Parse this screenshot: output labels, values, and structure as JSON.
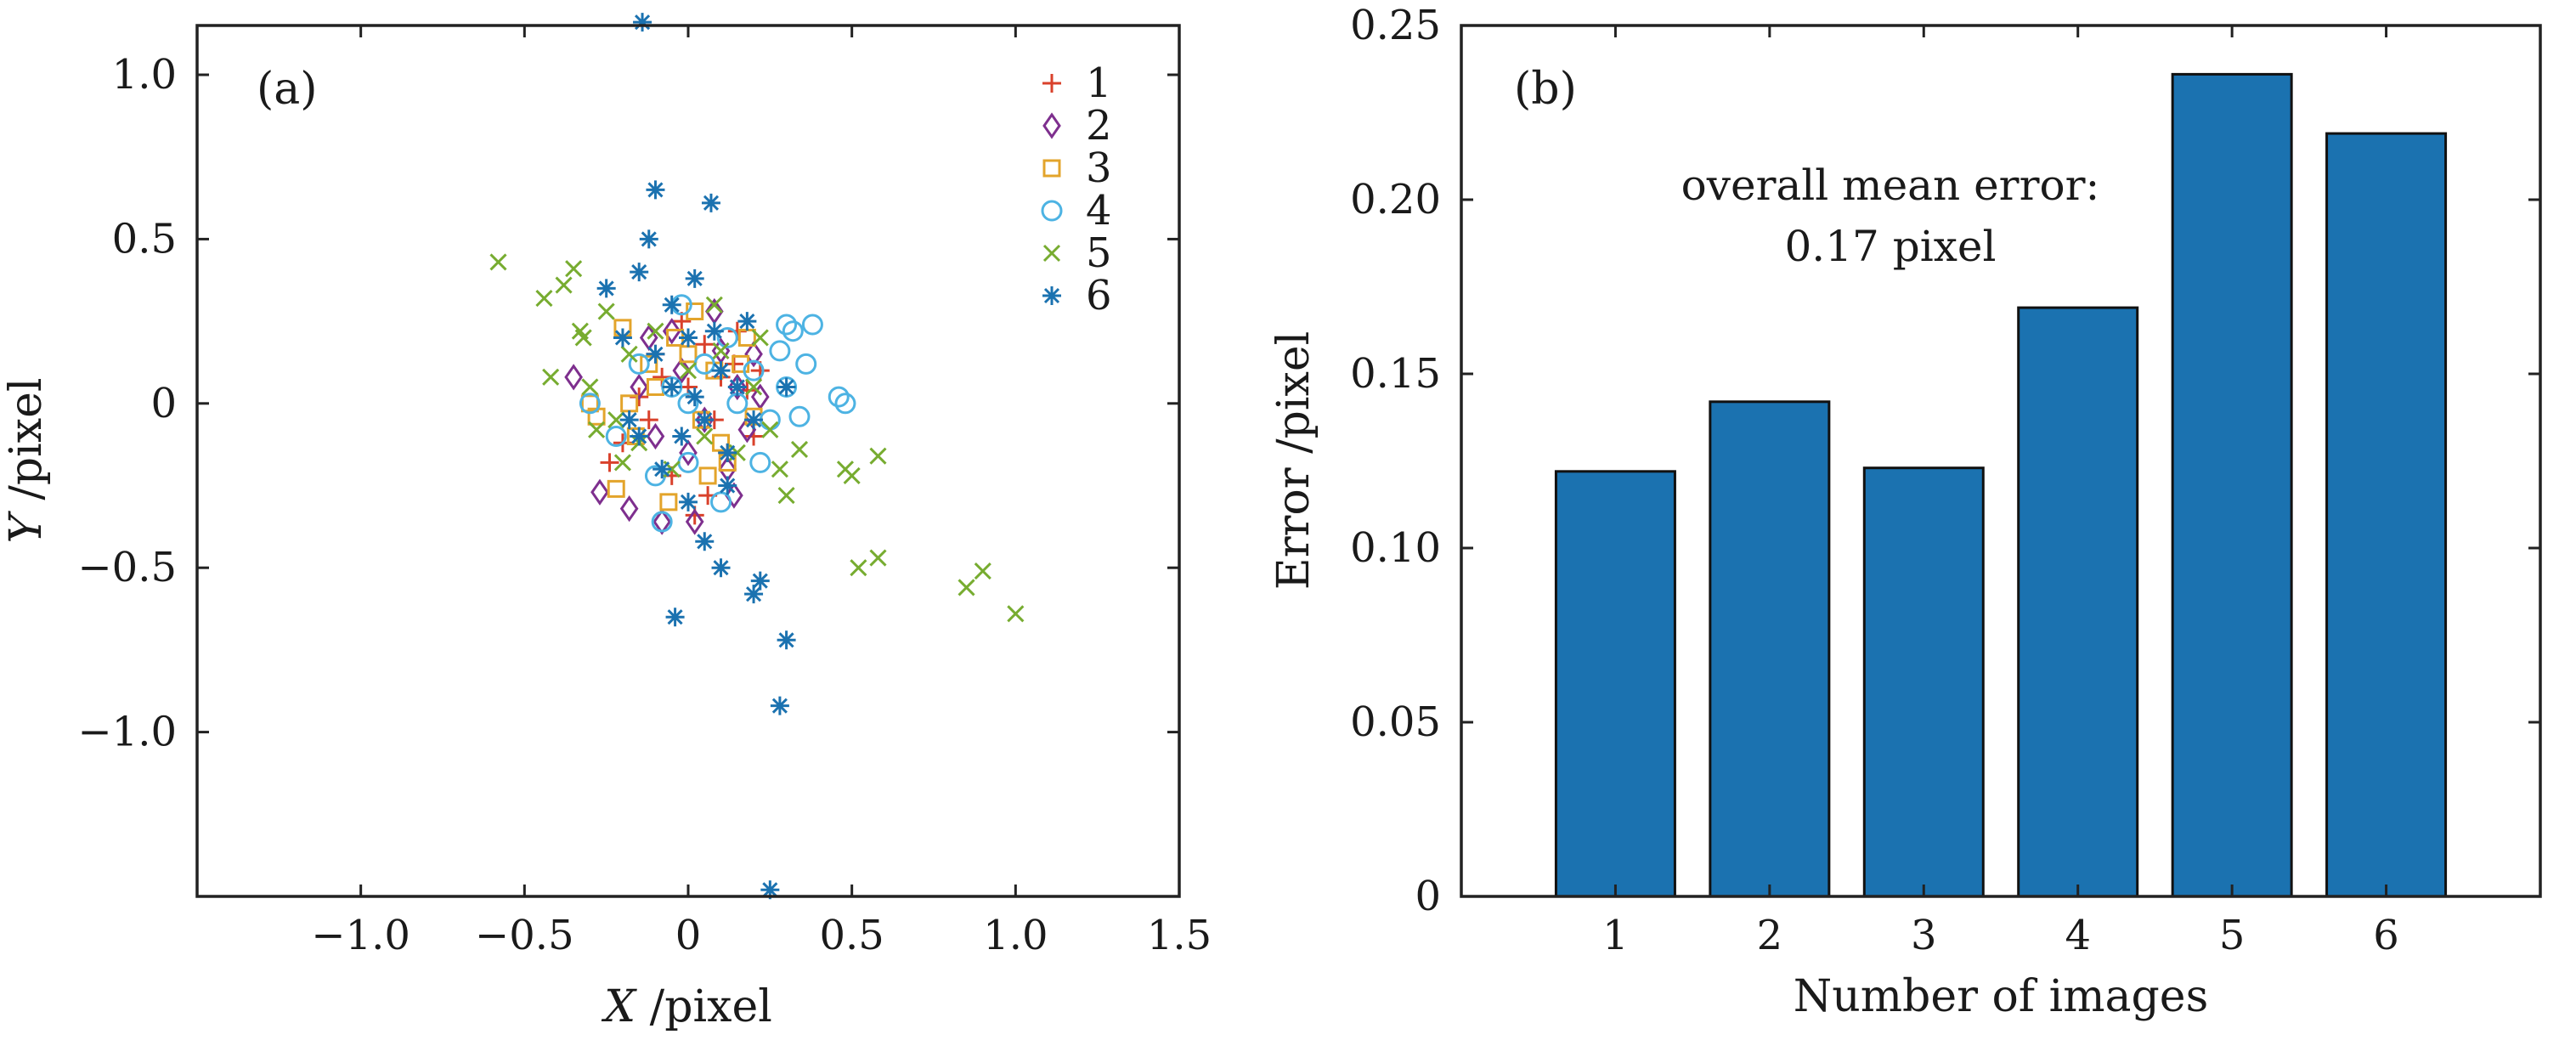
{
  "figure_colors": {
    "frame": "#222222",
    "text": "#1a1a1a",
    "bar_fill": "#1b72b0"
  },
  "chart_data": [
    {
      "panel": "a",
      "panel_label": "(a)",
      "type": "scatter",
      "xlabel_var": "X",
      "xlabel_unit": " /pixel",
      "ylabel_var": "Y",
      "ylabel_unit": " /pixel",
      "xlim": [
        -1.5,
        1.5
      ],
      "ylim": [
        -1.5,
        1.15
      ],
      "xticks": [
        {
          "value": -1.0,
          "label": "−1.0"
        },
        {
          "value": -0.5,
          "label": "−0.5"
        },
        {
          "value": 0,
          "label": "0"
        },
        {
          "value": 0.5,
          "label": "0.5"
        },
        {
          "value": 1.0,
          "label": "1.0"
        },
        {
          "value": 1.5,
          "label": "1.5"
        }
      ],
      "yticks": [
        {
          "value": -1.0,
          "label": "−1.0"
        },
        {
          "value": -0.5,
          "label": "−0.5"
        },
        {
          "value": 0,
          "label": "0"
        },
        {
          "value": 0.5,
          "label": "0.5"
        },
        {
          "value": 1.0,
          "label": "1.0"
        }
      ],
      "legend_position": "top-right",
      "series": [
        {
          "name": "1",
          "marker": "plus",
          "color": "#d9412b",
          "points": [
            [
              -0.24,
              -0.18
            ],
            [
              -0.2,
              -0.12
            ],
            [
              -0.15,
              0.02
            ],
            [
              -0.1,
              0.15
            ],
            [
              -0.05,
              -0.22
            ],
            [
              0,
              0.05
            ],
            [
              0.02,
              -0.34
            ],
            [
              0.05,
              0.18
            ],
            [
              0.08,
              -0.05
            ],
            [
              0.1,
              0.08
            ],
            [
              0.12,
              -0.15
            ],
            [
              0.15,
              0.22
            ],
            [
              0.18,
              0.04
            ],
            [
              0.2,
              -0.1
            ],
            [
              0.14,
              0.12
            ],
            [
              -0.12,
              -0.05
            ],
            [
              -0.08,
              0.08
            ],
            [
              0.22,
              0.1
            ],
            [
              0.06,
              -0.28
            ],
            [
              -0.02,
              0.25
            ]
          ]
        },
        {
          "name": "2",
          "marker": "diamond",
          "color": "#7e2f8e",
          "points": [
            [
              -0.35,
              0.08
            ],
            [
              -0.27,
              -0.27
            ],
            [
              -0.18,
              -0.32
            ],
            [
              -0.12,
              0.2
            ],
            [
              -0.08,
              -0.36
            ],
            [
              -0.02,
              0.1
            ],
            [
              0.02,
              -0.36
            ],
            [
              0.05,
              -0.05
            ],
            [
              0.1,
              0.16
            ],
            [
              0.12,
              -0.2
            ],
            [
              0.15,
              0.05
            ],
            [
              0.18,
              -0.08
            ],
            [
              0.2,
              0.15
            ],
            [
              0.08,
              0.28
            ],
            [
              -0.05,
              0.22
            ],
            [
              0.0,
              -0.15
            ],
            [
              -0.15,
              0.05
            ],
            [
              0.14,
              -0.28
            ],
            [
              0.22,
              0.02
            ],
            [
              -0.1,
              -0.1
            ]
          ]
        },
        {
          "name": "3",
          "marker": "square",
          "color": "#e3a42b",
          "points": [
            [
              -0.3,
              0.0
            ],
            [
              -0.28,
              -0.04
            ],
            [
              -0.22,
              -0.26
            ],
            [
              -0.2,
              0.23
            ],
            [
              -0.16,
              -0.1
            ],
            [
              -0.1,
              0.05
            ],
            [
              -0.06,
              -0.3
            ],
            [
              0.0,
              0.15
            ],
            [
              0.04,
              -0.05
            ],
            [
              0.08,
              0.1
            ],
            [
              0.12,
              -0.18
            ],
            [
              0.16,
              0.12
            ],
            [
              0.2,
              -0.04
            ],
            [
              -0.04,
              0.2
            ],
            [
              0.06,
              -0.22
            ],
            [
              -0.12,
              0.12
            ],
            [
              0.18,
              0.2
            ],
            [
              0.1,
              -0.12
            ],
            [
              -0.18,
              0.0
            ],
            [
              0.02,
              0.28
            ]
          ]
        },
        {
          "name": "4",
          "marker": "circle",
          "color": "#4db3e3",
          "points": [
            [
              -0.3,
              0.0
            ],
            [
              -0.22,
              -0.1
            ],
            [
              -0.15,
              0.12
            ],
            [
              -0.1,
              -0.22
            ],
            [
              -0.08,
              -0.36
            ],
            [
              -0.05,
              0.05
            ],
            [
              0.0,
              -0.18
            ],
            [
              0.05,
              0.12
            ],
            [
              0.1,
              -0.3
            ],
            [
              0.15,
              0.0
            ],
            [
              0.2,
              0.1
            ],
            [
              0.25,
              -0.05
            ],
            [
              0.3,
              0.05
            ],
            [
              0.32,
              0.22
            ],
            [
              0.36,
              0.12
            ],
            [
              0.3,
              0.24
            ],
            [
              0.38,
              0.24
            ],
            [
              0.34,
              -0.04
            ],
            [
              0.46,
              0.02
            ],
            [
              0.48,
              0.0
            ],
            [
              0.28,
              0.16
            ],
            [
              0.12,
              0.2
            ],
            [
              -0.02,
              0.3
            ],
            [
              0.22,
              -0.18
            ],
            [
              0.0,
              0.0
            ]
          ]
        },
        {
          "name": "5",
          "marker": "x",
          "color": "#77ac30",
          "points": [
            [
              -0.58,
              0.43
            ],
            [
              -0.44,
              0.32
            ],
            [
              -0.42,
              0.08
            ],
            [
              -0.38,
              0.36
            ],
            [
              -0.35,
              0.41
            ],
            [
              -0.32,
              0.2
            ],
            [
              -0.3,
              0.05
            ],
            [
              -0.28,
              -0.08
            ],
            [
              -0.25,
              0.28
            ],
            [
              -0.22,
              -0.05
            ],
            [
              -0.18,
              0.15
            ],
            [
              -0.15,
              -0.12
            ],
            [
              -0.1,
              0.22
            ],
            [
              -0.05,
              -0.2
            ],
            [
              0.0,
              0.1
            ],
            [
              0.05,
              -0.1
            ],
            [
              0.1,
              0.16
            ],
            [
              0.15,
              -0.15
            ],
            [
              0.2,
              0.05
            ],
            [
              0.25,
              -0.08
            ],
            [
              0.3,
              -0.28
            ],
            [
              0.34,
              -0.14
            ],
            [
              0.48,
              -0.2
            ],
            [
              0.5,
              -0.22
            ],
            [
              0.52,
              -0.5
            ],
            [
              0.58,
              -0.16
            ],
            [
              0.58,
              -0.47
            ],
            [
              0.85,
              -0.56
            ],
            [
              0.9,
              -0.51
            ],
            [
              1.0,
              -0.64
            ],
            [
              0.08,
              0.3
            ],
            [
              -0.2,
              -0.18
            ],
            [
              0.22,
              0.2
            ],
            [
              0.28,
              -0.2
            ],
            [
              -0.33,
              0.22
            ]
          ]
        },
        {
          "name": "6",
          "marker": "asterisk",
          "color": "#1b72b0",
          "points": [
            [
              -0.14,
              1.16
            ],
            [
              -0.1,
              0.65
            ],
            [
              -0.12,
              0.5
            ],
            [
              0.07,
              0.61
            ],
            [
              -0.15,
              0.4
            ],
            [
              -0.05,
              0.3
            ],
            [
              0.02,
              0.38
            ],
            [
              -0.2,
              0.2
            ],
            [
              -0.1,
              0.15
            ],
            [
              0.0,
              0.2
            ],
            [
              0.1,
              0.1
            ],
            [
              -0.05,
              0.05
            ],
            [
              0.05,
              -0.05
            ],
            [
              -0.15,
              -0.1
            ],
            [
              0.12,
              -0.15
            ],
            [
              0.0,
              -0.3
            ],
            [
              0.05,
              -0.42
            ],
            [
              0.1,
              -0.5
            ],
            [
              0.2,
              -0.58
            ],
            [
              0.22,
              -0.54
            ],
            [
              -0.04,
              -0.65
            ],
            [
              0.3,
              -0.72
            ],
            [
              0.28,
              -0.92
            ],
            [
              0.25,
              -1.48
            ],
            [
              0.18,
              0.25
            ],
            [
              -0.08,
              -0.2
            ],
            [
              0.15,
              0.05
            ],
            [
              0.3,
              0.05
            ],
            [
              -0.25,
              0.35
            ],
            [
              0.02,
              0.02
            ],
            [
              0.08,
              0.22
            ],
            [
              -0.18,
              -0.05
            ],
            [
              0.12,
              -0.25
            ],
            [
              -0.02,
              -0.1
            ],
            [
              0.2,
              -0.05
            ]
          ]
        }
      ]
    },
    {
      "panel": "b",
      "panel_label": "(b)",
      "type": "bar",
      "categories": [
        "1",
        "2",
        "3",
        "4",
        "5",
        "6"
      ],
      "values": [
        0.122,
        0.142,
        0.123,
        0.169,
        0.236,
        0.219
      ],
      "xlabel": "Number of images",
      "ylabel": "Error /pixel",
      "ylim": [
        0,
        0.25
      ],
      "yticks": [
        {
          "value": 0,
          "label": "0"
        },
        {
          "value": 0.05,
          "label": "0.05"
        },
        {
          "value": 0.1,
          "label": "0.10"
        },
        {
          "value": 0.15,
          "label": "0.15"
        },
        {
          "value": 0.2,
          "label": "0.20"
        },
        {
          "value": 0.25,
          "label": "0.25"
        }
      ],
      "xlim": [
        0,
        7
      ],
      "annotation_line1": "overall mean error:",
      "annotation_line2": "0.17 pixel"
    }
  ]
}
